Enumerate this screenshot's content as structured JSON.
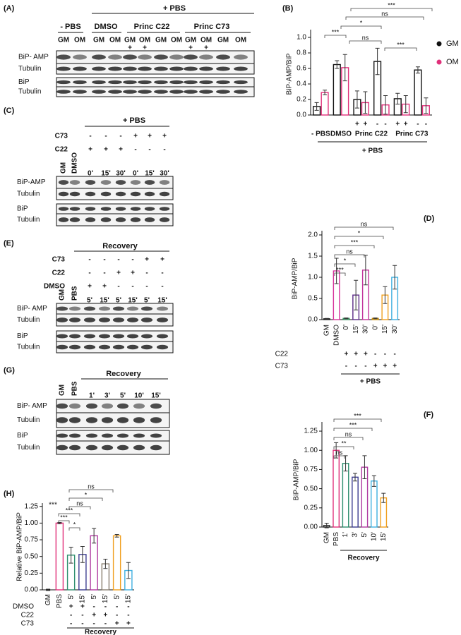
{
  "blots": [
    {
      "panel": "(A)",
      "header": "+ PBS",
      "groups": [
        "- PBS",
        "DMSO",
        "Princ C22",
        "Princ C73"
      ],
      "lanes": [
        "GM",
        "OM",
        "GM",
        "OM",
        "GM",
        "OM",
        "GM",
        "OM",
        "GM",
        "OM",
        "GM",
        "OM"
      ],
      "signs": [
        null,
        null,
        null,
        null,
        "+",
        "+",
        null,
        null,
        "+",
        "+",
        null,
        null
      ],
      "rows": [
        "BiP- AMP",
        "Tubulin",
        "BiP",
        "Tubulin"
      ]
    },
    {
      "panel": "(C)",
      "header": "+ PBS",
      "conditions": [
        {
          "name": "C73",
          "signs": [
            "-",
            "-",
            "-",
            "+",
            "+",
            "+"
          ]
        },
        {
          "name": "C22",
          "signs": [
            "+",
            "+",
            "+",
            "-",
            "-",
            "-"
          ]
        }
      ],
      "lanes": [
        "GM",
        "DMSO",
        "0'",
        "15'",
        "30'",
        "0'",
        "15'",
        "30'"
      ],
      "rows": [
        "BiP-AMP",
        "Tubulin",
        "BiP",
        "Tubulin"
      ]
    },
    {
      "panel": "(E)",
      "header": "Recovery",
      "conditions": [
        {
          "name": "C73",
          "signs": [
            "-",
            "-",
            "-",
            "-",
            "+",
            "+"
          ]
        },
        {
          "name": "C22",
          "signs": [
            "-",
            "-",
            "+",
            "+",
            "-",
            "-"
          ]
        },
        {
          "name": "DMSO",
          "signs": [
            "+",
            "+",
            "-",
            "-",
            "-",
            "-"
          ]
        }
      ],
      "lanes": [
        "GM",
        "PBS",
        "5'",
        "15'",
        "5'",
        "15'",
        "5'",
        "15'"
      ],
      "rows": [
        "BiP- AMP",
        "Tubulin",
        "BiP",
        "Tubulin"
      ]
    },
    {
      "panel": "(G)",
      "header": "Recovery",
      "lanes": [
        "GM",
        "PBS",
        "1'",
        "3'",
        "5'",
        "10'",
        "15'"
      ],
      "rows": [
        "BiP- AMP",
        "Tubulin",
        "BiP",
        "Tubulin"
      ]
    }
  ],
  "chart_data": [
    {
      "panel": "(B)",
      "type": "bar",
      "ylabel": "BiP-AMP/BiP",
      "categories": [
        "- PBS",
        "DMSO",
        "Princ C22",
        null,
        "Princ C73",
        null
      ],
      "series": [
        {
          "name": "GM",
          "color": "#111111",
          "values": [
            0.11,
            0.65,
            0.2,
            0.69,
            0.21,
            0.58
          ],
          "errors": [
            0.05,
            0.05,
            0.11,
            0.17,
            0.07,
            0.04
          ]
        },
        {
          "name": "OM",
          "color": "#e0307a",
          "values": [
            0.29,
            0.61,
            0.16,
            0.13,
            0.14,
            0.12
          ],
          "errors": [
            0.03,
            0.17,
            0.14,
            0.12,
            0.11,
            0.1
          ]
        }
      ],
      "signs": [
        [
          null,
          null
        ],
        [
          null,
          null
        ],
        [
          "+",
          "+"
        ],
        [
          "-",
          "-"
        ],
        [
          "+",
          "+"
        ],
        [
          "-",
          "-"
        ]
      ],
      "group_label": "+ PBS",
      "ylim": [
        0,
        1.1
      ],
      "yticks": [
        {
          "value": 0,
          "label": "0.0"
        },
        0.2,
        0.4,
        0.6,
        0.8,
        {
          "value": 1,
          "label": "1.0"
        }
      ],
      "annotations": [
        "***",
        "ns",
        "*",
        "***",
        "ns",
        "***"
      ]
    },
    {
      "panel": "(D)",
      "type": "bar",
      "ylabel": "BiP-AMP/BiP",
      "categories": [
        "GM",
        "DMSO",
        "0'",
        "15'",
        "30'",
        "0'",
        "15'",
        "30'"
      ],
      "values": [
        0.02,
        1.15,
        0.03,
        0.58,
        1.17,
        0.03,
        0.58,
        1.0
      ],
      "errors": [
        0.01,
        0.3,
        0.01,
        0.35,
        0.35,
        0.01,
        0.2,
        0.28
      ],
      "colors": [
        "#222222",
        "#d6339a",
        "#2e8b57",
        "#5b2a86",
        "#c2339a",
        "#c98a00",
        "#f0a020",
        "#3fb0e0"
      ],
      "conditions": [
        {
          "name": "C22",
          "signs": [
            "+",
            "+",
            "+",
            "-",
            "-",
            "-"
          ]
        },
        {
          "name": "C73",
          "signs": [
            "-",
            "-",
            "-",
            "+",
            "+",
            "+"
          ]
        }
      ],
      "group_label": "+ PBS",
      "ylim": [
        0,
        2.1
      ],
      "yticks": [
        {
          "value": 0,
          "label": "0.0"
        },
        0.5,
        {
          "value": 1,
          "label": "1.0"
        },
        1.5,
        {
          "value": 2,
          "label": "2.0"
        }
      ],
      "annotations": [
        "ns",
        "*",
        "***",
        "ns",
        "*",
        "***"
      ]
    },
    {
      "panel": "(F)",
      "type": "bar",
      "ylabel": "BiP-AMP/BiP",
      "categories": [
        "GM",
        "PBS",
        "1'",
        "3'",
        "5'",
        "10'",
        "15'"
      ],
      "values": [
        0.02,
        1.0,
        0.83,
        0.65,
        0.78,
        0.6,
        0.38
      ],
      "errors": [
        0.03,
        0.1,
        0.1,
        0.05,
        0.15,
        0.07,
        0.06
      ],
      "colors": [
        "#222222",
        "#e0307a",
        "#2f8f6f",
        "#3b3b8f",
        "#b03aa0",
        "#3fb0e0",
        "#f0a020"
      ],
      "group_label": "Recovery",
      "ylim": [
        0,
        1.37
      ],
      "yticks": [
        {
          "value": 0,
          "label": "0.00"
        },
        {
          "value": 0.25,
          "label": "0.25"
        },
        {
          "value": 0.5,
          "label": "0.50"
        },
        {
          "value": 0.75,
          "label": "0.75"
        },
        {
          "value": 1,
          "label": "1.00"
        },
        {
          "value": 1.25,
          "label": "1.25"
        }
      ],
      "annotations": [
        "***",
        "***",
        "ns",
        "**",
        "ns"
      ]
    },
    {
      "panel": "(H)",
      "type": "bar",
      "ylabel": "Relative BiP-AMP/BiP",
      "categories": [
        "GM",
        "PBS",
        "5'",
        "15'",
        "5'",
        "15'",
        "5'",
        "15'"
      ],
      "values": [
        0.0,
        1.0,
        0.52,
        0.53,
        0.81,
        0.39,
        0.81,
        0.29
      ],
      "errors": [
        0.01,
        0.01,
        0.12,
        0.12,
        0.11,
        0.07,
        0.02,
        0.12
      ],
      "colors": [
        "#222222",
        "#e0307a",
        "#2f8f6f",
        "#3b3b8f",
        "#b03aa0",
        "#8a7f70",
        "#f0a020",
        "#3fb0e0"
      ],
      "conditions": [
        {
          "name": "DMSO",
          "signs": [
            "+",
            "+",
            "-",
            "-",
            "-",
            "-"
          ]
        },
        {
          "name": "C22",
          "signs": [
            "-",
            "-",
            "+",
            "+",
            "-",
            "-"
          ]
        },
        {
          "name": "C73",
          "signs": [
            "-",
            "-",
            "-",
            "-",
            "+",
            "+"
          ]
        }
      ],
      "group_label": "Recovery",
      "ylim": [
        0,
        1.3
      ],
      "yticks": [
        {
          "value": 0,
          "label": "0.00"
        },
        {
          "value": 0.25,
          "label": "0.25"
        },
        {
          "value": 0.5,
          "label": "0.50"
        },
        {
          "value": 0.75,
          "label": "0.75"
        },
        {
          "value": 1,
          "label": "1.00"
        },
        {
          "value": 1.25,
          "label": "1.25"
        }
      ],
      "annotations": [
        "***",
        "ns",
        "*",
        "ns",
        "***",
        "***",
        "*"
      ]
    }
  ]
}
